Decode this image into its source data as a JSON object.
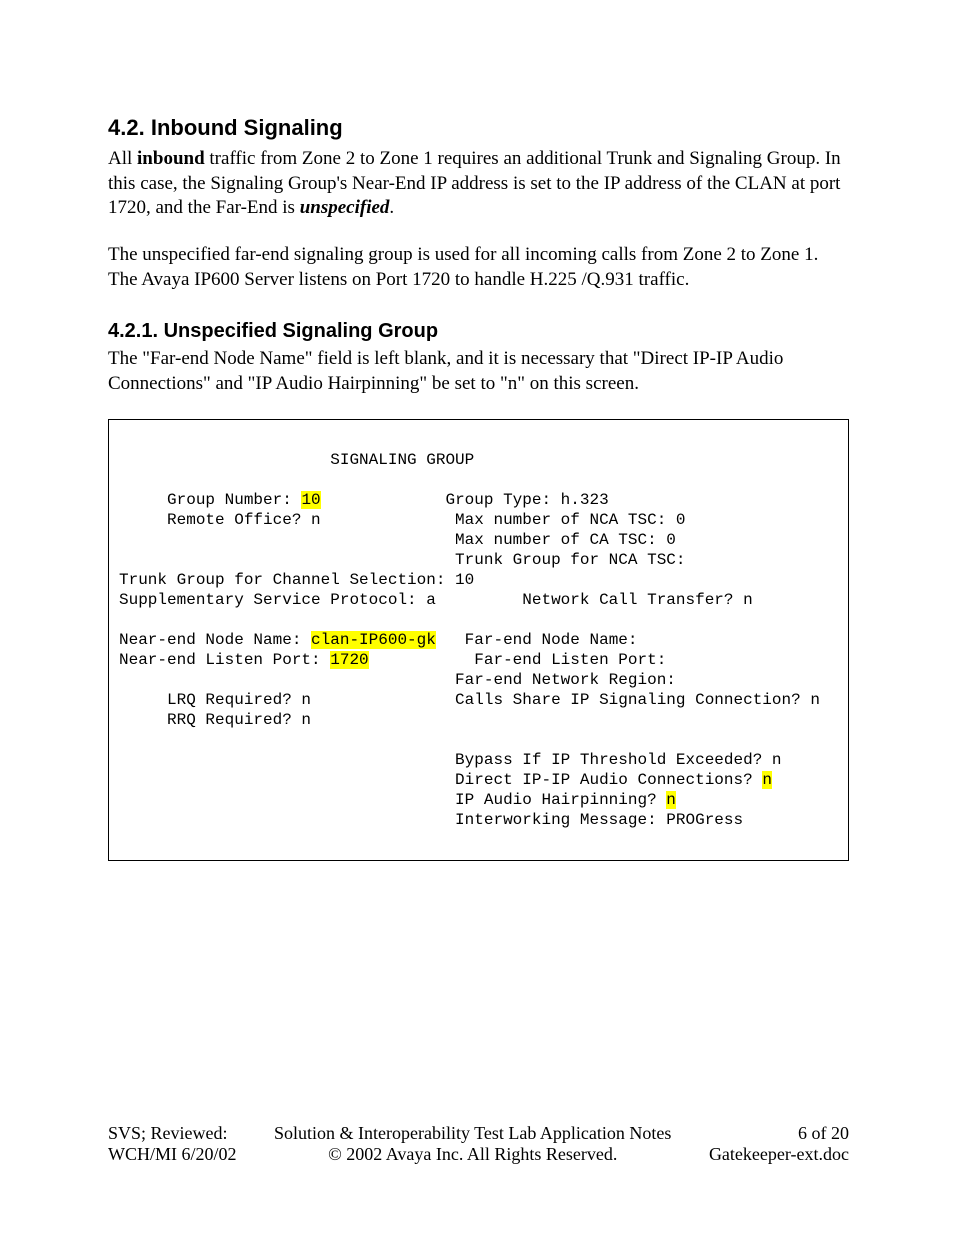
{
  "headings": {
    "h2_num": "4.2.",
    "h2_title": "Inbound Signaling",
    "h3_num": "4.2.1.",
    "h3_title": "Unspecified Signaling Group"
  },
  "para1": {
    "t1": "All ",
    "bold1": "inbound",
    "t2": " traffic from Zone 2 to Zone 1 requires an additional Trunk and Signaling Group. In this case, the Signaling Group's Near-End IP address is set to the IP address of the CLAN at port 1720, and the Far-End is ",
    "boldital1": "unspecified",
    "t3": "."
  },
  "para2": "The unspecified far-end signaling group is used for all incoming calls from Zone 2 to Zone 1. The Avaya IP600 Server listens on Port 1720 to handle H.225 /Q.931 traffic.",
  "para3": "The \"Far-end Node Name\" field is left blank, and it is necessary that \"Direct IP-IP Audio Connections\" and \"IP Audio Hairpinning\" be set to \"n\" on this screen.",
  "terminal": {
    "title_line": "                      SIGNALING GROUP",
    "highlight_color": "#ffff00",
    "hl_group_number": "10",
    "hl_near_end_node": "clan-IP600-gk",
    "hl_near_end_port": "1720",
    "hl_direct_ip": "n",
    "hl_hairpin": "n",
    "l1a": "     Group Number: ",
    "l1b": "             Group Type: h.323",
    "l2": "     Remote Office? n              Max number of NCA TSC: 0",
    "l3": "                                   Max number of CA TSC: 0",
    "l4": "                                   Trunk Group for NCA TSC:",
    "l5": "Trunk Group for Channel Selection: 10",
    "l6": "Supplementary Service Protocol: a         Network Call Transfer? n",
    "l7a": "Near-end Node Name: ",
    "l7b": "   Far-end Node Name:",
    "l8a": "Near-end Listen Port: ",
    "l8b": "           Far-end Listen Port:",
    "l9": "                                   Far-end Network Region:",
    "l10": "     LRQ Required? n               Calls Share IP Signaling Connection? n",
    "l11": "     RRQ Required? n",
    "l12": "                                   Bypass If IP Threshold Exceeded? n",
    "l13a": "                                   Direct IP-IP Audio Connections? ",
    "l14a": "                                   IP Audio Hairpinning? ",
    "l15": "                                   Interworking Message: PROGress"
  },
  "footer": {
    "left1": "SVS; Reviewed:",
    "left2": "WCH/MI 6/20/02",
    "center1": "Solution & Interoperability Test Lab Application Notes",
    "center2": "© 2002 Avaya Inc. All Rights Reserved.",
    "right1": "6 of 20",
    "right2": "Gatekeeper-ext.doc"
  }
}
